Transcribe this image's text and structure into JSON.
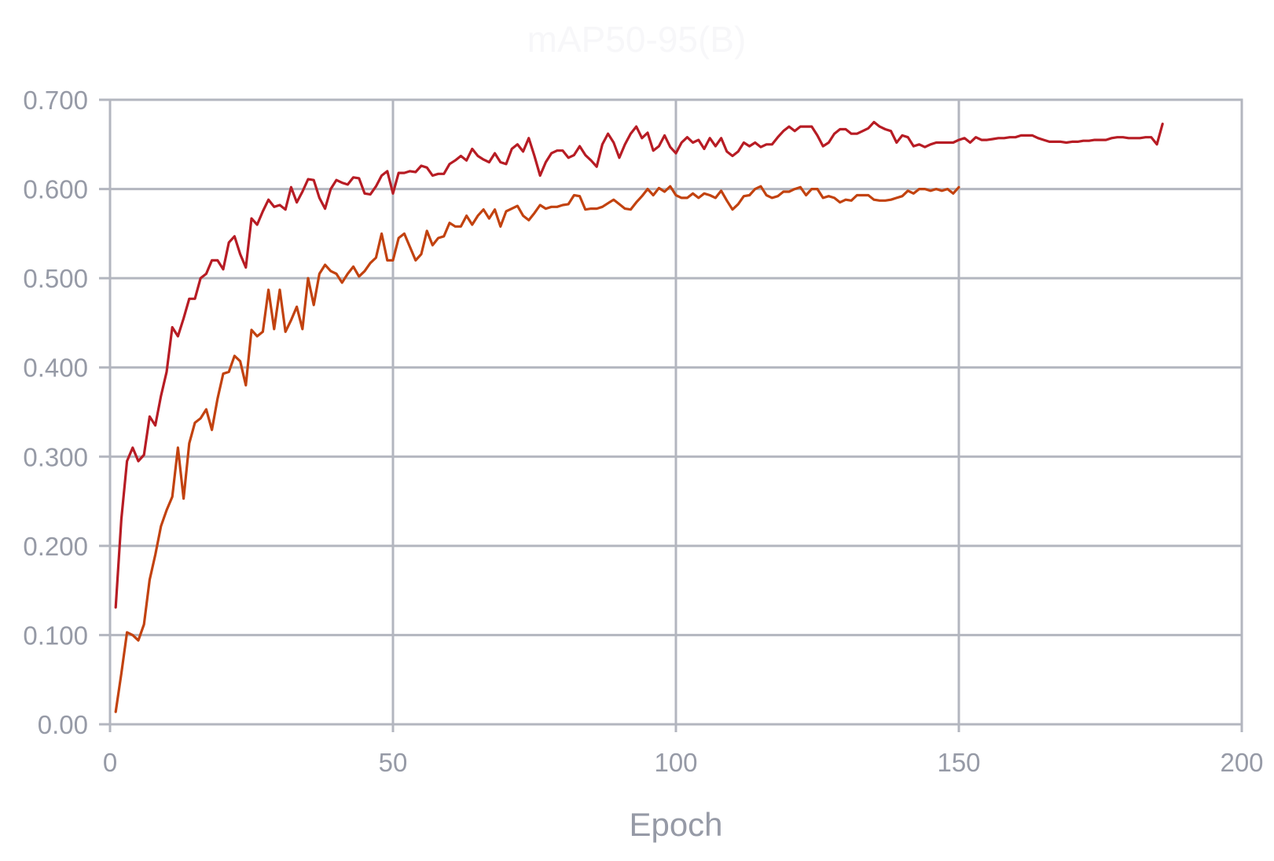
{
  "chart_data": {
    "type": "line",
    "title": "mAP50-95(B)",
    "xlabel": "Epoch",
    "ylabel": "",
    "xlim": [
      0,
      200
    ],
    "ylim": [
      0,
      0.7
    ],
    "x_ticks": [
      "0",
      "50",
      "100",
      "150",
      "200"
    ],
    "y_ticks": [
      "0.00",
      "0.100",
      "0.200",
      "0.300",
      "0.400",
      "0.500",
      "0.600",
      "0.700"
    ],
    "grid": true,
    "legend": "none",
    "colors": {
      "series_1": "#b71c24",
      "series_2": "#c2420f",
      "grid": "#b3b6bf",
      "text": "#969aa6"
    },
    "series": [
      {
        "x": [
          1,
          2,
          3,
          4,
          5,
          6,
          7,
          8,
          9,
          10,
          11,
          12,
          13,
          14,
          15,
          16,
          17,
          18,
          19,
          20,
          21,
          22,
          23,
          24,
          25,
          26,
          27,
          28,
          29,
          30,
          31,
          32,
          33,
          34,
          35,
          36,
          37,
          38,
          39,
          40,
          41,
          42,
          43,
          44,
          45,
          46,
          47,
          48,
          49,
          50,
          51,
          52,
          53,
          54,
          55,
          56,
          57,
          58,
          59,
          60,
          61,
          62,
          63,
          64,
          65,
          66,
          67,
          68,
          69,
          70,
          71,
          72,
          73,
          74,
          75,
          76,
          77,
          78,
          79,
          80,
          81,
          82,
          83,
          84,
          85,
          86,
          87,
          88,
          89,
          90,
          91,
          92,
          93,
          94,
          95,
          96,
          97,
          98,
          99,
          100,
          101,
          102,
          103,
          104,
          105,
          106,
          107,
          108,
          109,
          110,
          111,
          112,
          113,
          114,
          115,
          116,
          117,
          118,
          119,
          120,
          121,
          122,
          123,
          124,
          125,
          126,
          127,
          128,
          129,
          130,
          131,
          132,
          133,
          134,
          135,
          136,
          137,
          138,
          139,
          140,
          141,
          142,
          143,
          144,
          145,
          146,
          147,
          148,
          149,
          150,
          151,
          152,
          153,
          154,
          155,
          156,
          157,
          158,
          159,
          160,
          161,
          162,
          163,
          164,
          165,
          166,
          167,
          168,
          169,
          170,
          171,
          172,
          173,
          174,
          175,
          176,
          177,
          178,
          179,
          180,
          181,
          182,
          183,
          184,
          185,
          186
        ],
        "values": [
          0.131,
          0.23,
          0.295,
          0.31,
          0.295,
          0.302,
          0.345,
          0.335,
          0.368,
          0.395,
          0.445,
          0.435,
          0.455,
          0.477,
          0.477,
          0.5,
          0.505,
          0.52,
          0.52,
          0.51,
          0.54,
          0.547,
          0.527,
          0.512,
          0.567,
          0.56,
          0.575,
          0.588,
          0.58,
          0.582,
          0.577,
          0.602,
          0.585,
          0.597,
          0.611,
          0.61,
          0.59,
          0.578,
          0.6,
          0.61,
          0.607,
          0.605,
          0.613,
          0.612,
          0.595,
          0.594,
          0.603,
          0.615,
          0.62,
          0.595,
          0.618,
          0.618,
          0.62,
          0.619,
          0.626,
          0.624,
          0.615,
          0.617,
          0.617,
          0.628,
          0.632,
          0.637,
          0.632,
          0.645,
          0.637,
          0.633,
          0.63,
          0.64,
          0.63,
          0.628,
          0.645,
          0.65,
          0.642,
          0.657,
          0.637,
          0.615,
          0.63,
          0.64,
          0.643,
          0.643,
          0.635,
          0.638,
          0.648,
          0.638,
          0.632,
          0.625,
          0.65,
          0.662,
          0.652,
          0.635,
          0.65,
          0.662,
          0.67,
          0.657,
          0.663,
          0.643,
          0.648,
          0.66,
          0.647,
          0.64,
          0.652,
          0.658,
          0.652,
          0.655,
          0.645,
          0.657,
          0.648,
          0.657,
          0.642,
          0.637,
          0.642,
          0.652,
          0.648,
          0.652,
          0.647,
          0.65,
          0.65,
          0.658,
          0.665,
          0.67,
          0.665,
          0.67,
          0.67,
          0.67,
          0.66,
          0.648,
          0.652,
          0.662,
          0.667,
          0.667,
          0.662,
          0.662,
          0.665,
          0.668,
          0.675,
          0.67,
          0.667,
          0.665,
          0.652,
          0.66,
          0.658,
          0.648,
          0.65,
          0.647,
          0.65,
          0.652,
          0.652,
          0.652,
          0.652,
          0.655,
          0.657,
          0.652,
          0.658,
          0.655,
          0.655,
          0.656,
          0.657,
          0.657,
          0.658,
          0.658,
          0.66,
          0.66,
          0.66,
          0.657,
          0.655,
          0.653,
          0.653,
          0.653,
          0.652,
          0.653,
          0.653,
          0.654,
          0.654,
          0.655,
          0.655,
          0.655,
          0.657,
          0.658,
          0.658,
          0.657,
          0.657,
          0.657,
          0.658,
          0.658,
          0.65,
          0.673
        ]
      },
      {
        "x": [
          1,
          2,
          3,
          4,
          5,
          6,
          7,
          8,
          9,
          10,
          11,
          12,
          13,
          14,
          15,
          16,
          17,
          18,
          19,
          20,
          21,
          22,
          23,
          24,
          25,
          26,
          27,
          28,
          29,
          30,
          31,
          32,
          33,
          34,
          35,
          36,
          37,
          38,
          39,
          40,
          41,
          42,
          43,
          44,
          45,
          46,
          47,
          48,
          49,
          50,
          51,
          52,
          53,
          54,
          55,
          56,
          57,
          58,
          59,
          60,
          61,
          62,
          63,
          64,
          65,
          66,
          67,
          68,
          69,
          70,
          71,
          72,
          73,
          74,
          75,
          76,
          77,
          78,
          79,
          80,
          81,
          82,
          83,
          84,
          85,
          86,
          87,
          88,
          89,
          90,
          91,
          92,
          93,
          94,
          95,
          96,
          97,
          98,
          99,
          100,
          101,
          102,
          103,
          104,
          105,
          106,
          107,
          108,
          109,
          110,
          111,
          112,
          113,
          114,
          115,
          116,
          117,
          118,
          119,
          120,
          121,
          122,
          123,
          124,
          125,
          126,
          127,
          128,
          129,
          130,
          131,
          132,
          133,
          134,
          135,
          136,
          137,
          138,
          139,
          140,
          141,
          142,
          143,
          144,
          145,
          146,
          147,
          148,
          149,
          150
        ],
        "values": [
          0.014,
          0.057,
          0.103,
          0.1,
          0.094,
          0.112,
          0.162,
          0.19,
          0.222,
          0.24,
          0.255,
          0.31,
          0.253,
          0.315,
          0.338,
          0.343,
          0.353,
          0.33,
          0.365,
          0.393,
          0.395,
          0.413,
          0.407,
          0.38,
          0.442,
          0.435,
          0.44,
          0.487,
          0.443,
          0.487,
          0.44,
          0.453,
          0.468,
          0.443,
          0.5,
          0.47,
          0.505,
          0.515,
          0.508,
          0.505,
          0.495,
          0.505,
          0.513,
          0.502,
          0.508,
          0.517,
          0.523,
          0.55,
          0.52,
          0.52,
          0.545,
          0.55,
          0.535,
          0.52,
          0.527,
          0.553,
          0.537,
          0.545,
          0.547,
          0.562,
          0.558,
          0.558,
          0.57,
          0.56,
          0.57,
          0.577,
          0.567,
          0.577,
          0.558,
          0.575,
          0.578,
          0.581,
          0.57,
          0.565,
          0.573,
          0.582,
          0.578,
          0.58,
          0.58,
          0.582,
          0.583,
          0.593,
          0.592,
          0.577,
          0.578,
          0.578,
          0.58,
          0.584,
          0.588,
          0.583,
          0.578,
          0.577,
          0.585,
          0.592,
          0.6,
          0.593,
          0.601,
          0.597,
          0.603,
          0.593,
          0.59,
          0.59,
          0.595,
          0.59,
          0.595,
          0.593,
          0.59,
          0.598,
          0.587,
          0.577,
          0.583,
          0.592,
          0.593,
          0.6,
          0.603,
          0.593,
          0.59,
          0.592,
          0.597,
          0.597,
          0.6,
          0.602,
          0.593,
          0.6,
          0.6,
          0.59,
          0.592,
          0.59,
          0.585,
          0.588,
          0.587,
          0.593,
          0.593,
          0.593,
          0.588,
          0.587,
          0.587,
          0.588,
          0.59,
          0.592,
          0.598,
          0.595,
          0.6,
          0.6,
          0.598,
          0.6,
          0.598,
          0.6,
          0.595,
          0.602
        ]
      }
    ]
  }
}
